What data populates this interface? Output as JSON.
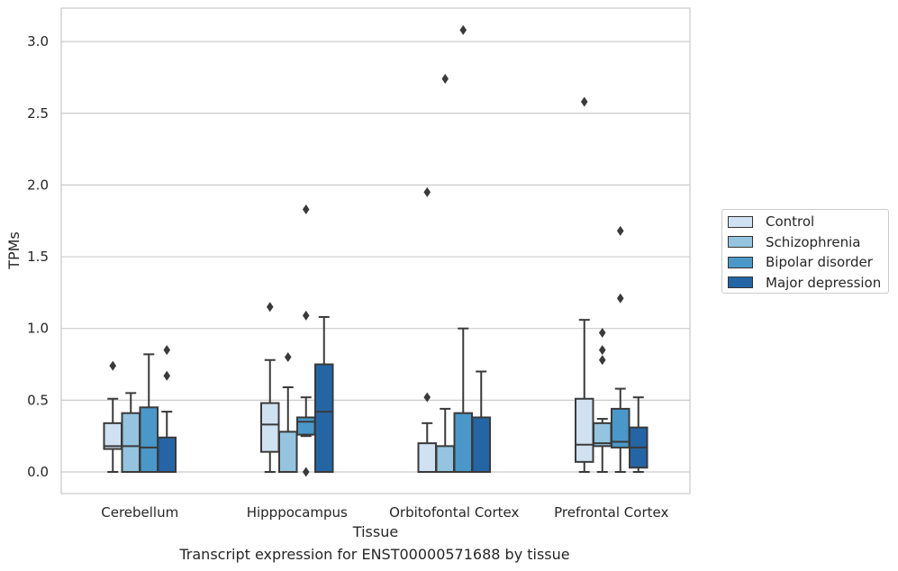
{
  "chart_data": {
    "type": "box",
    "xlabel": "Tissue",
    "ylabel": "TPMs",
    "caption": "Transcript expression for ENST00000571688 by tissue",
    "ylim": [
      -0.15,
      3.25
    ],
    "yticks": [
      "0.0",
      "0.5",
      "1.0",
      "1.5",
      "2.0",
      "2.5",
      "3.0"
    ],
    "grid": "horizontal",
    "legend_position": "right",
    "categories": [
      "Cerebellum",
      "Hipppocampus",
      "Orbitofontal Cortex",
      "Prefrontal Cortex"
    ],
    "series": [
      {
        "name": "Control",
        "color": "#d0e1f2",
        "boxes": [
          {
            "whisker_low": 0.0,
            "q1": 0.16,
            "median": 0.18,
            "q3": 0.34,
            "whisker_high": 0.51,
            "outliers": [
              0.74
            ]
          },
          {
            "whisker_low": 0.0,
            "q1": 0.14,
            "median": 0.33,
            "q3": 0.48,
            "whisker_high": 0.78,
            "outliers": [
              1.15
            ]
          },
          {
            "whisker_low": 0.0,
            "q1": 0.0,
            "median": 0.0,
            "q3": 0.2,
            "whisker_high": 0.34,
            "outliers": [
              0.52,
              1.95
            ]
          },
          {
            "whisker_low": 0.0,
            "q1": 0.07,
            "median": 0.19,
            "q3": 0.51,
            "whisker_high": 1.06,
            "outliers": [
              2.58
            ]
          }
        ]
      },
      {
        "name": "Schizophrenia",
        "color": "#94c4df",
        "boxes": [
          {
            "whisker_low": 0.0,
            "q1": 0.0,
            "median": 0.18,
            "q3": 0.41,
            "whisker_high": 0.55,
            "outliers": []
          },
          {
            "whisker_low": 0.0,
            "q1": 0.0,
            "median": 0.0,
            "q3": 0.28,
            "whisker_high": 0.59,
            "outliers": [
              0.8
            ]
          },
          {
            "whisker_low": 0.0,
            "q1": 0.0,
            "median": 0.0,
            "q3": 0.18,
            "whisker_high": 0.44,
            "outliers": [
              2.74
            ]
          },
          {
            "whisker_low": 0.0,
            "q1": 0.18,
            "median": 0.2,
            "q3": 0.34,
            "whisker_high": 0.37,
            "outliers": [
              0.78,
              0.85,
              0.97
            ]
          }
        ]
      },
      {
        "name": "Bipolar disorder",
        "color": "#4a98c9",
        "boxes": [
          {
            "whisker_low": 0.0,
            "q1": 0.0,
            "median": 0.17,
            "q3": 0.45,
            "whisker_high": 0.82,
            "outliers": []
          },
          {
            "whisker_low": 0.25,
            "q1": 0.26,
            "median": 0.35,
            "q3": 0.38,
            "whisker_high": 0.52,
            "outliers": [
              0.0,
              1.09,
              1.83
            ]
          },
          {
            "whisker_low": 0.0,
            "q1": 0.0,
            "median": 0.0,
            "q3": 0.41,
            "whisker_high": 1.0,
            "outliers": [
              3.08
            ]
          },
          {
            "whisker_low": 0.0,
            "q1": 0.17,
            "median": 0.21,
            "q3": 0.44,
            "whisker_high": 0.58,
            "outliers": [
              1.21,
              1.68
            ]
          }
        ]
      },
      {
        "name": "Major depression",
        "color": "#2465a6",
        "boxes": [
          {
            "whisker_low": 0.0,
            "q1": 0.0,
            "median": 0.0,
            "q3": 0.24,
            "whisker_high": 0.42,
            "outliers": [
              0.67,
              0.85
            ]
          },
          {
            "whisker_low": 0.0,
            "q1": 0.0,
            "median": 0.42,
            "q3": 0.75,
            "whisker_high": 1.08,
            "outliers": []
          },
          {
            "whisker_low": 0.0,
            "q1": 0.0,
            "median": 0.0,
            "q3": 0.38,
            "whisker_high": 0.7,
            "outliers": []
          },
          {
            "whisker_low": 0.0,
            "q1": 0.03,
            "median": 0.17,
            "q3": 0.31,
            "whisker_high": 0.52,
            "outliers": []
          }
        ]
      }
    ]
  }
}
